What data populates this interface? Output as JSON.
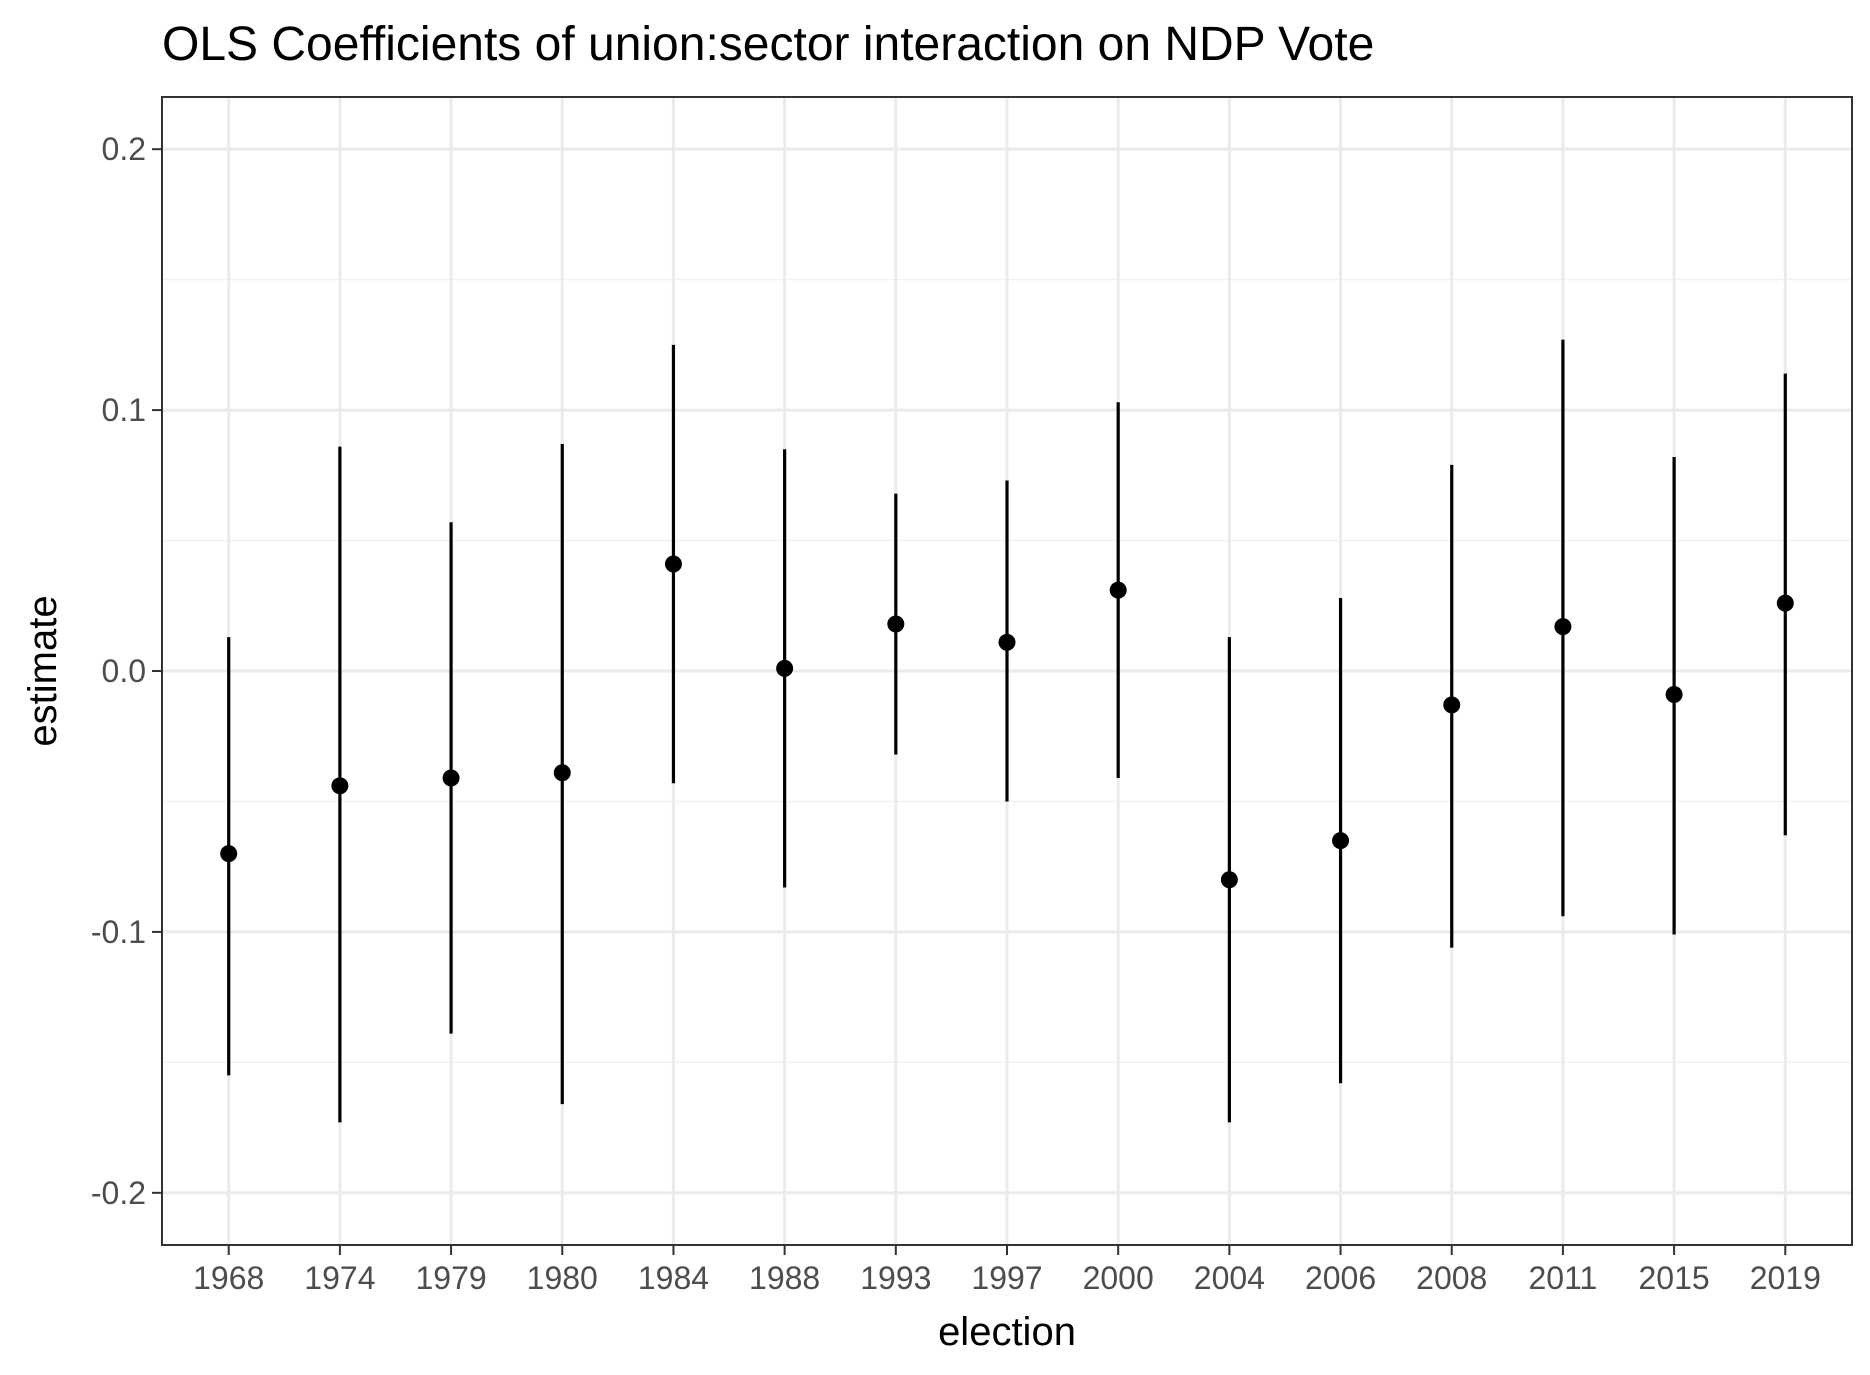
{
  "chart_data": {
    "type": "scatter",
    "subtype": "pointrange",
    "title": "OLS Coefficients of union:sector interaction on NDP Vote",
    "xlabel": "election",
    "ylabel": "estimate",
    "ylim": [
      -0.22,
      0.22
    ],
    "yticks": [
      -0.2,
      -0.1,
      0.0,
      0.1,
      0.2
    ],
    "ytick_labels": [
      "-0.2",
      "-0.1",
      "0.0",
      "0.1",
      "0.2"
    ],
    "grid": true,
    "categories": [
      "1968",
      "1974",
      "1979",
      "1980",
      "1984",
      "1988",
      "1993",
      "1997",
      "2000",
      "2004",
      "2006",
      "2008",
      "2011",
      "2015",
      "2019"
    ],
    "series": [
      {
        "estimate": [
          -0.07,
          -0.044,
          -0.041,
          -0.039,
          0.041,
          0.001,
          0.018,
          0.011,
          0.031,
          -0.08,
          -0.065,
          -0.013,
          0.017,
          -0.009,
          0.026
        ],
        "lower": [
          -0.155,
          -0.173,
          -0.139,
          -0.166,
          -0.043,
          -0.083,
          -0.032,
          -0.05,
          -0.041,
          -0.173,
          -0.158,
          -0.106,
          -0.094,
          -0.101,
          -0.063
        ],
        "upper": [
          0.013,
          0.086,
          0.057,
          0.087,
          0.125,
          0.085,
          0.068,
          0.073,
          0.103,
          0.013,
          0.028,
          0.079,
          0.127,
          0.082,
          0.114
        ]
      }
    ],
    "colors": {
      "point": "#000000",
      "grid": "#ebebeb",
      "panel_border": "#333333",
      "tick_text": "#4d4d4d"
    }
  }
}
